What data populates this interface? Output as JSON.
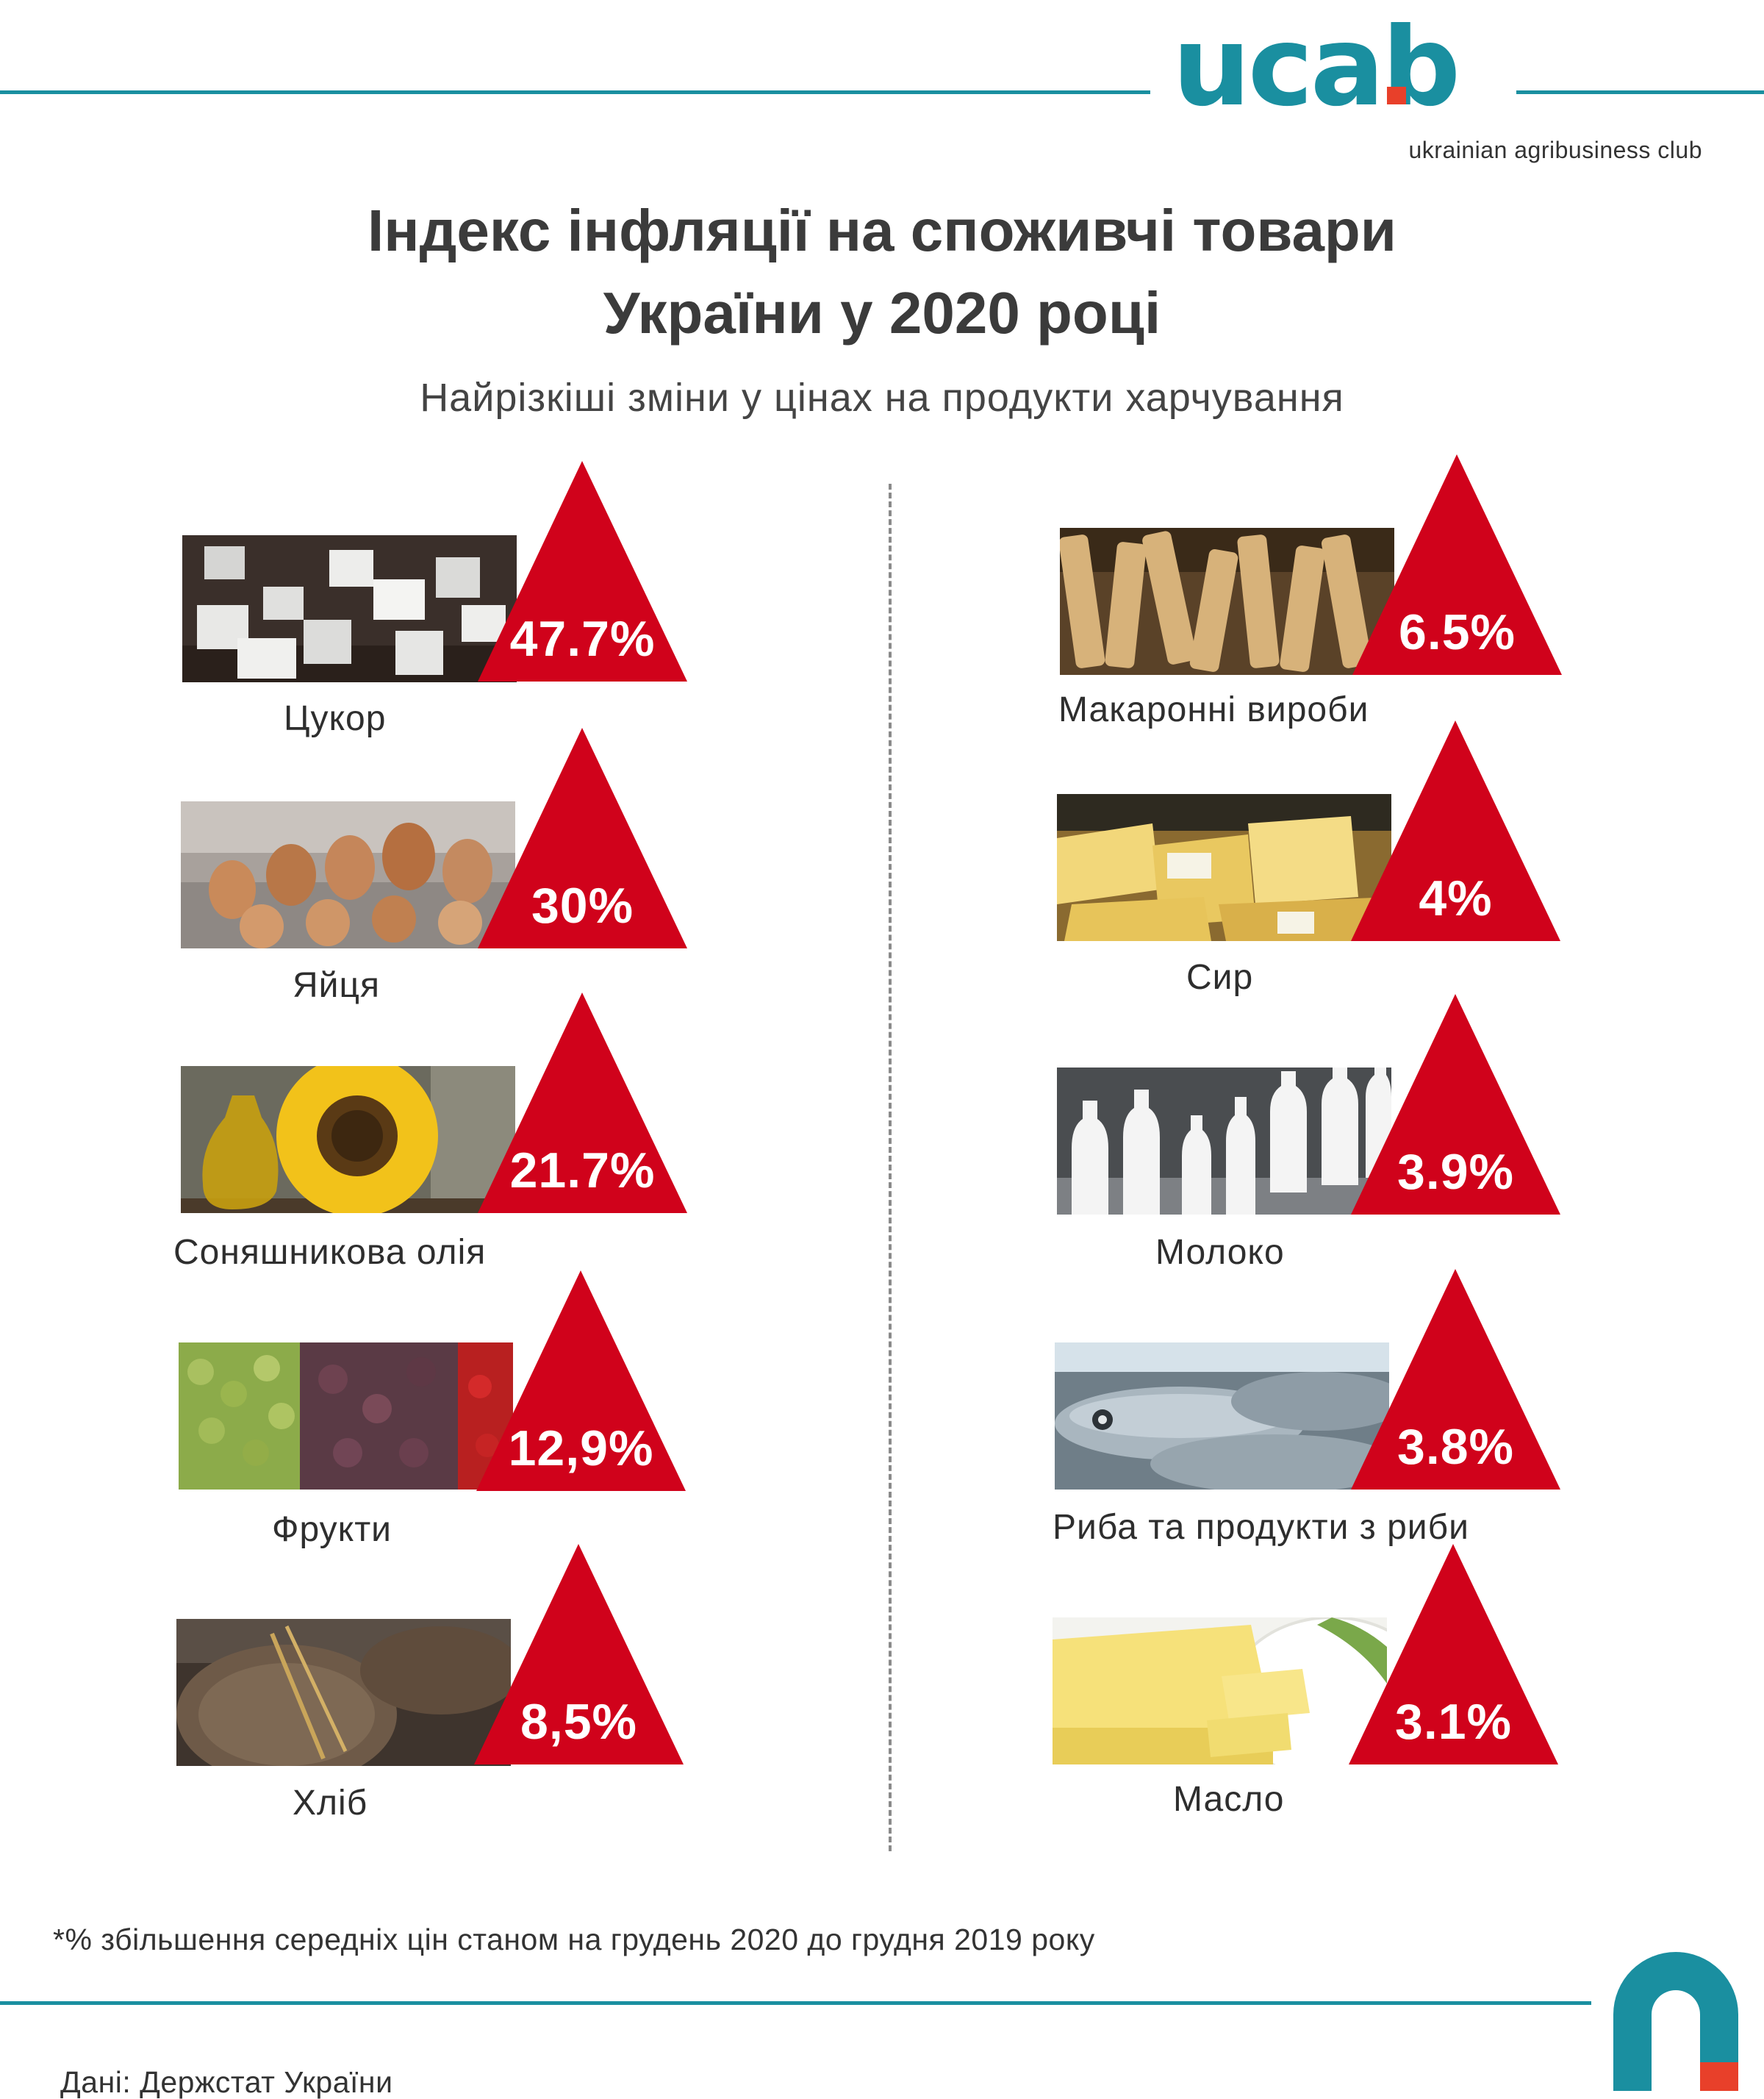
{
  "brand": {
    "logo_text": "ucab",
    "tagline": "ukrainian agribusiness club",
    "accent_color": "#1a8fa0",
    "logo_dot_color": "#e8402a"
  },
  "header": {
    "title_line1": "Індекс інфляції на споживчі товари",
    "title_line2": "України у 2020 році",
    "subtitle": "Найрізкіші зміни у цінах на продукти харчування"
  },
  "chart_data": {
    "type": "bar",
    "title": "Індекс інфляції на споживчі товари України у 2020 році",
    "subtitle": "Найрізкіші зміни у цінах на продукти харчування",
    "marker": "triangle-up",
    "marker_color": "#d0021b",
    "items": [
      {
        "category": "Цукор",
        "label": "47.7%",
        "value": 47.7,
        "photo": "sugar-cubes"
      },
      {
        "category": "Яйця",
        "label": "30%",
        "value": 30,
        "photo": "eggs"
      },
      {
        "category": "Соняшникова олія",
        "label": "21.7%",
        "value": 21.7,
        "photo": "sunflower-oil"
      },
      {
        "category": "Фрукти",
        "label": "12,9%",
        "value": 12.9,
        "photo": "fruits"
      },
      {
        "category": "Хліб",
        "label": "8,5%",
        "value": 8.5,
        "photo": "bread"
      },
      {
        "category": "Макаронні вироби",
        "label": "6.5%",
        "value": 6.5,
        "photo": "pasta"
      },
      {
        "category": "Сир",
        "label": "4%",
        "value": 4,
        "photo": "cheese"
      },
      {
        "category": "Молоко",
        "label": "3.9%",
        "value": 3.9,
        "photo": "milk-bottles"
      },
      {
        "category": "Риба та продукти з риби",
        "label": "3.8%",
        "value": 3.8,
        "photo": "fish"
      },
      {
        "category": "Масло",
        "label": "3.1%",
        "value": 3.1,
        "photo": "butter"
      }
    ]
  },
  "footer": {
    "footnote": "*% збільшення середніх цін станом на грудень 2020 до грудня 2019 року",
    "source": "Дані: Держстат України"
  }
}
